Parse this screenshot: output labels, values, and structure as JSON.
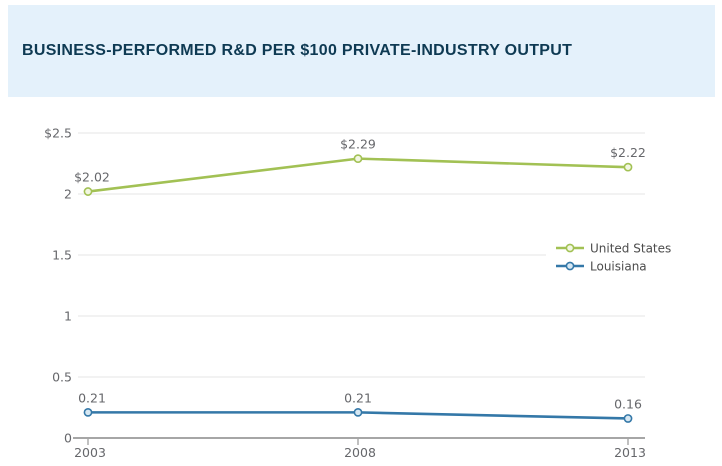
{
  "header": {
    "title": "BUSINESS-PERFORMED R&D PER $100 PRIVATE-INDUSTRY OUTPUT"
  },
  "colors": {
    "banner_bg": "#e4f1fb",
    "title_text": "#0e3a53",
    "axis": "#a6a6a6",
    "gridline": "#eeeeee",
    "axis_label_text": "#66676b",
    "data_label_text": "#66676b",
    "legend_text": "#4c4c4c",
    "united_states": "#a2c154",
    "louisiana": "#3478a8"
  },
  "chart_data": {
    "type": "line",
    "title": "BUSINESS-PERFORMED R&D PER $100 PRIVATE-INDUSTRY OUTPUT",
    "categories": [
      "2003",
      "2008",
      "2013"
    ],
    "x": [
      2003,
      2008,
      2013
    ],
    "series": [
      {
        "name": "United States",
        "values": [
          2.02,
          2.29,
          2.22
        ],
        "labels": [
          "$2.02",
          "$2.29",
          "$2.22"
        ],
        "color": "#a2c154",
        "marker_fill": "#f2f7e2"
      },
      {
        "name": "Louisiana",
        "values": [
          0.21,
          0.21,
          0.16
        ],
        "labels": [
          "0.21",
          "0.21",
          "0.16"
        ],
        "color": "#3478a8",
        "marker_fill": "#d7e8f3"
      }
    ],
    "ylim": [
      0,
      2.5
    ],
    "y_ticks": [
      {
        "value": 2.5,
        "label": "$2.5"
      },
      {
        "value": 2,
        "label": "2"
      },
      {
        "value": 1.5,
        "label": "1.5"
      },
      {
        "value": 1,
        "label": "1"
      },
      {
        "value": 0.5,
        "label": "0.5"
      },
      {
        "value": 0,
        "label": "0"
      }
    ],
    "xlabel": "",
    "ylabel": "",
    "grid": true,
    "legend_position": "right"
  }
}
